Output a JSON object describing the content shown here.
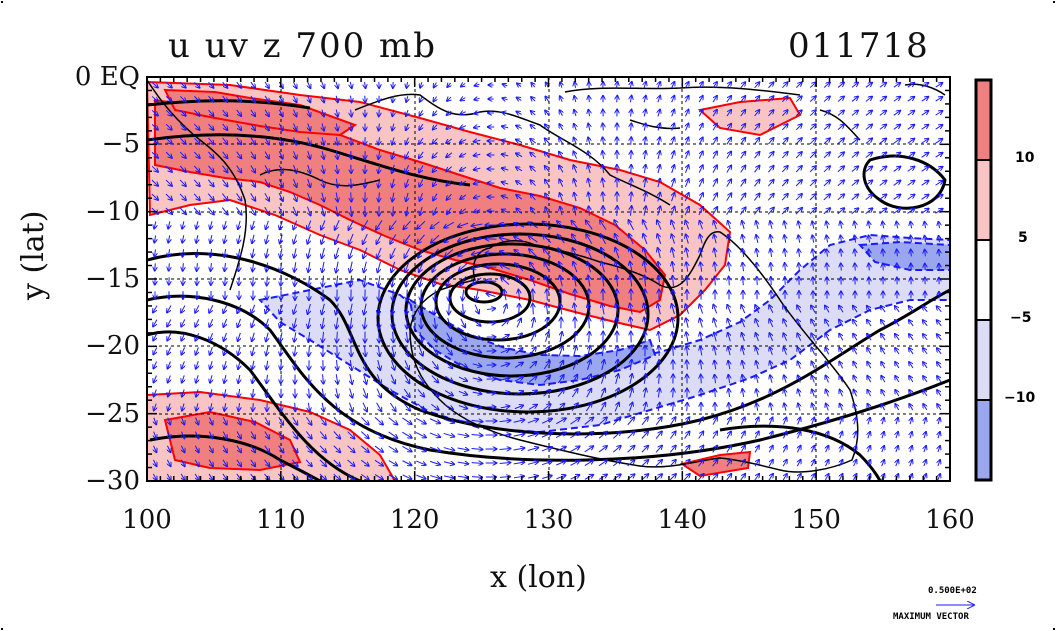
{
  "title": {
    "variables": "u uv z 700 mb",
    "date": "011718"
  },
  "axes": {
    "x_label": "x (lon)",
    "y_label": "y (lat)",
    "x_ticks": [
      "100",
      "110",
      "120",
      "130",
      "140",
      "150",
      "160"
    ],
    "y_ticks": [
      "0 EQ",
      "−5",
      "−10",
      "−15",
      "−20",
      "−25",
      "−30"
    ],
    "x_range": [
      100,
      160
    ],
    "y_range": [
      -30,
      0
    ]
  },
  "colorbar": {
    "labels": [
      "10",
      "5",
      "−5",
      "−10"
    ],
    "colors": [
      "#f08080",
      "#f8c4c4",
      "#ffffff",
      "#dcdcf6",
      "#9aa6ee"
    ]
  },
  "vector_key": {
    "value": "0.500E+02",
    "label": "MAXIMUM VECTOR"
  },
  "colors": {
    "contour": "#000000",
    "wind_vector": "#1a1aff",
    "positive_line": "#ff0000",
    "negative_line": "#1a1aff"
  }
}
